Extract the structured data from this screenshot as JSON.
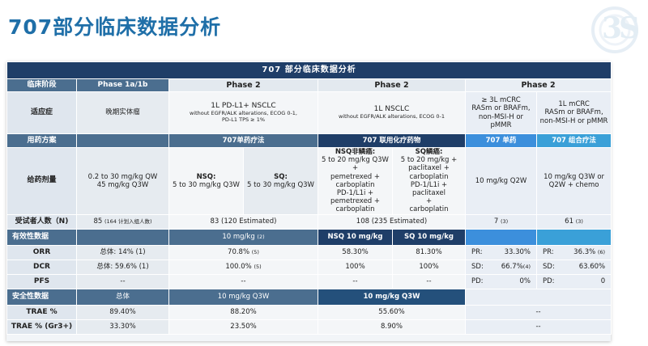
{
  "page_title": "707部分临床数据分析",
  "logo": {
    "text": "3S"
  },
  "table": {
    "caption": "707 部分临床数据分析",
    "header_row": {
      "label": "临床阶段",
      "phase1": "Phase 1a/1b",
      "phase2a": "Phase 2",
      "phase2b": "Phase 2",
      "phase2c": "Phase 2"
    },
    "indication": {
      "label": "适应症",
      "c1": "晚期实体瘤",
      "c2_line1": "1L PD-L1+ NSCLC",
      "c2_line2": "without EGFR/ALK alterations, ECOG 0-1,",
      "c2_line3": "PD-L1 TPS ≥ 1%",
      "c3_line1": "1L NSCLC",
      "c3_line2": "without EGFR/ALK alterations, ECOG 0-1",
      "c4_line1": "≥ 3L mCRC",
      "c4_line2": "RASm or BRAFm,",
      "c4_line3": "non-MSI-H or pMMR",
      "c5_line1": "1L mCRC",
      "c5_line2": "RASm or BRAFm,",
      "c5_line3": "non-MSI-H or pMMR"
    },
    "regimen": {
      "label": "用药方案",
      "mono": "707单药疗法",
      "combo": "707 联用化疗药物",
      "crc_mono": "707 单药",
      "crc_combo": "707 组合疗法"
    },
    "dosing": {
      "label": "给药剂量",
      "c1_line1": "0.2 to 30 mg/kg QW",
      "c1_line2": "45 mg/kg Q3W",
      "nsq_title": "NSQ:",
      "nsq_dose": "5 to 30 mg/kg Q3W",
      "sq_title": "SQ:",
      "sq_dose": "5 to 30 mg/kg Q3W",
      "nsq_combo_title": "NSQ非鳞癌:",
      "nsq_combo_l1": "5 to 20 mg/kg Q3W +",
      "nsq_combo_l2": "pemetrexed +",
      "nsq_combo_l3": "carboplatin",
      "nsq_combo_l4": "PD-1/L1i +",
      "nsq_combo_l5": "pemetrexed +",
      "nsq_combo_l6": "carboplatin",
      "sq_combo_title": "SQ鳞癌:",
      "sq_combo_l1": "5 to 20 mg/kg +",
      "sq_combo_l2": "paclitaxel +",
      "sq_combo_l3": "carboplatin",
      "sq_combo_l4": "PD-1/L1i + paclitaxel",
      "sq_combo_l5": "+",
      "sq_combo_l6": "carboplatin",
      "crc_mono": "10 mg/kg Q2W",
      "crc_combo_l1": "10 mg/kg Q3W or",
      "crc_combo_l2": "Q2W + chemo"
    },
    "patients": {
      "label": "受试者人数（N)",
      "c1": "85",
      "c1_note": "(164 计划入组人数)",
      "c2": "83 (120 Estimated)",
      "c3": "108 (235 Estimated)",
      "c4": "7",
      "c4_ref": "(3)",
      "c5": "61",
      "c5_ref": "(3)"
    },
    "efficacy": {
      "label": "有效性数据",
      "mono_dose": "10 mg/kg",
      "mono_ref": "(2)",
      "nsq_dose": "NSQ 10 mg/kg",
      "sq_dose": "SQ 10 mg/kg",
      "rows": [
        {
          "label": "ORR",
          "c1": "总体: 14% (1)",
          "c2": "70.8%",
          "c2_ref": "(5)",
          "c3": "58.30%",
          "c4": "81.30%",
          "c5_k": "PR:",
          "c5_v": "33.30%",
          "c6_k": "PR:",
          "c6_v": "36.3%",
          "c6_ref": "(6)"
        },
        {
          "label": "DCR",
          "c1": "总体: 59.6% (1)",
          "c2": "100.0%",
          "c2_ref": "(5)",
          "c3": "100%",
          "c4": "100%",
          "c5_k": "SD:",
          "c5_v": "66.7%",
          "c5_ref": "(4)",
          "c6_k": "SD:",
          "c6_v": "63.60%"
        },
        {
          "label": "PFS",
          "c1": "--",
          "c2": "--",
          "c3": "--",
          "c4": "--",
          "c5_k": "PD:",
          "c5_v": "0%",
          "c6_k": "PD:",
          "c6_v": "0"
        }
      ]
    },
    "safety": {
      "label": "安全性数据",
      "c1": "总体",
      "c2": "10 mg/kg Q3W",
      "c3": "10 mg/kg Q3W",
      "rows": [
        {
          "label": "TRAE %",
          "c1": "89.40%",
          "c2": "88.20%",
          "c3": "55.60%",
          "c4": "--"
        },
        {
          "label": "TRAE % (Gr3+)",
          "c1": "33.30%",
          "c2": "23.50%",
          "c3": "8.90%",
          "c4": "--"
        }
      ]
    }
  }
}
